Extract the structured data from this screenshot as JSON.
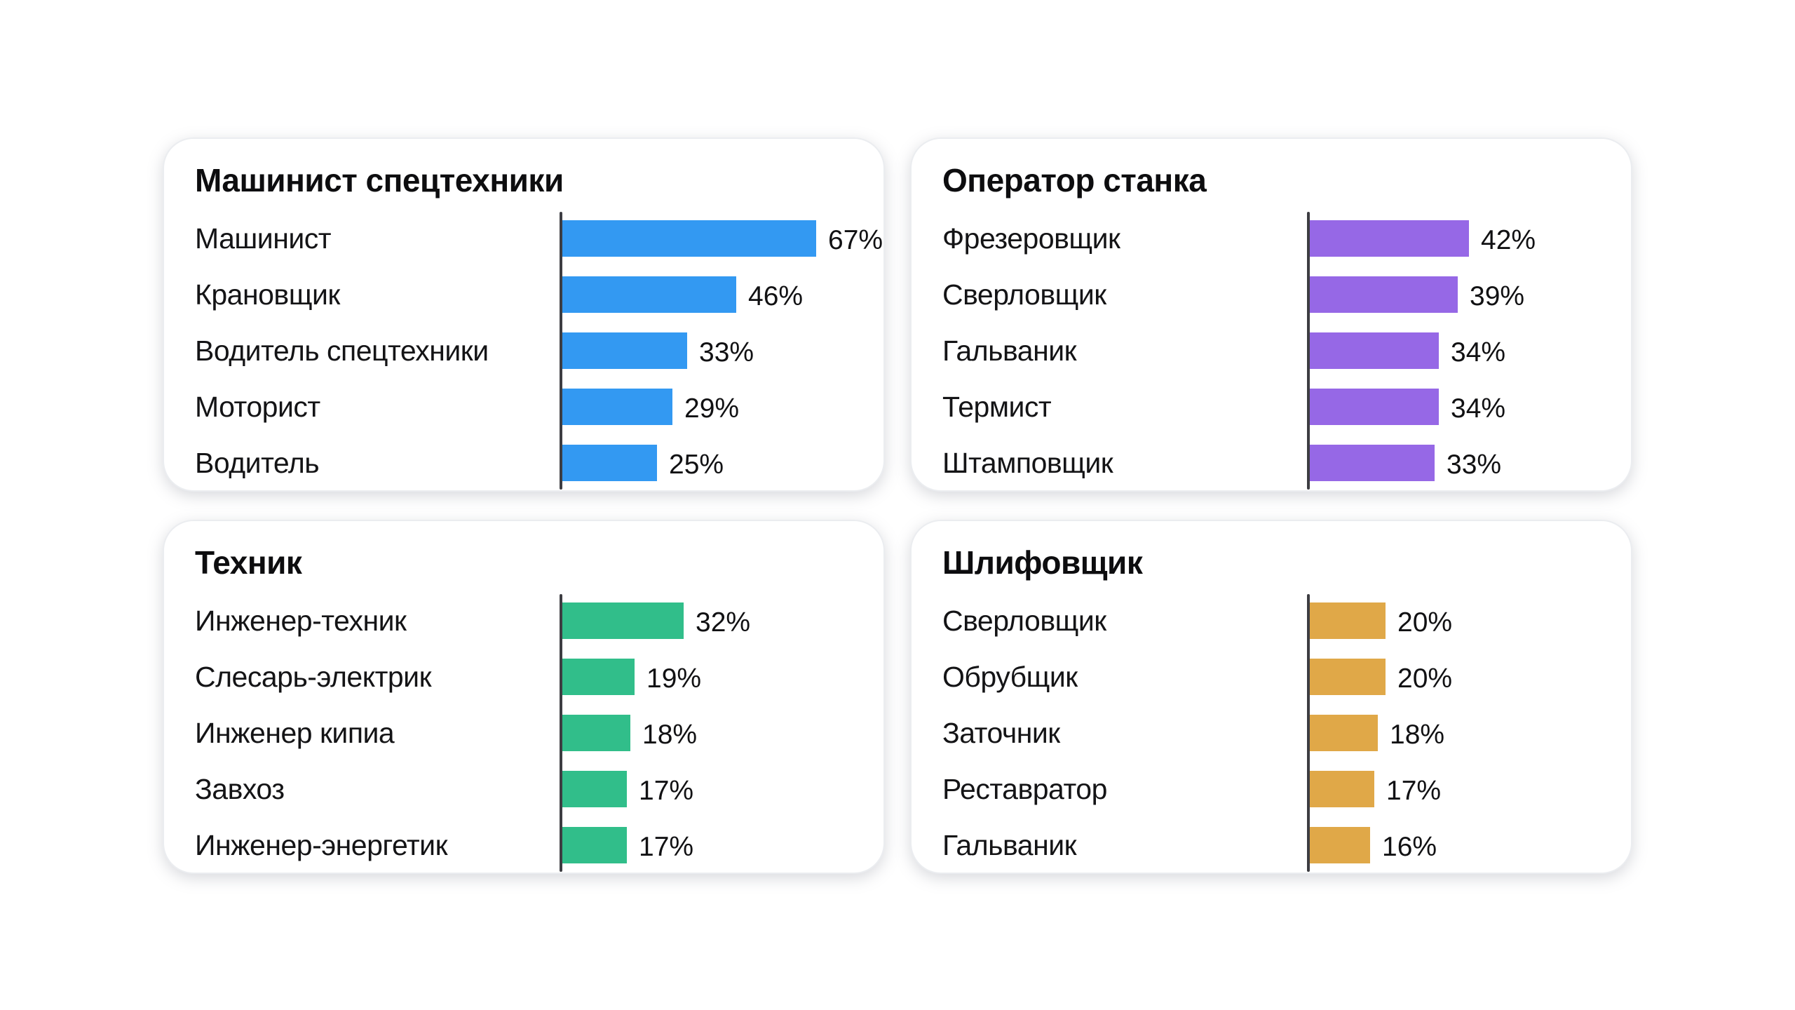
{
  "page": {
    "background_color": "#ffffff",
    "card_background": "#ffffff",
    "axis_color": "#3d3d42",
    "text_color": "#141416"
  },
  "chart_data": [
    {
      "type": "bar",
      "orientation": "horizontal",
      "title": "Машинист спецтехники",
      "color": "#3399f2",
      "categories": [
        "Машинист",
        "Крановщик",
        "Водитель спецтехники",
        "Моторист",
        "Водитель"
      ],
      "values": [
        67,
        46,
        33,
        29,
        25
      ],
      "value_suffix": "%",
      "xlim": [
        0,
        100
      ],
      "grid": false,
      "legend": false,
      "value_labels": "outside-end"
    },
    {
      "type": "bar",
      "orientation": "horizontal",
      "title": "Оператор станка",
      "color": "#9668e6",
      "categories": [
        "Фрезеровщик",
        "Сверловщик",
        "Гальваник",
        "Термист",
        "Штамповщик"
      ],
      "values": [
        42,
        39,
        34,
        34,
        33
      ],
      "value_suffix": "%",
      "xlim": [
        0,
        100
      ],
      "grid": false,
      "legend": false,
      "value_labels": "outside-end"
    },
    {
      "type": "bar",
      "orientation": "horizontal",
      "title": "Техник",
      "color": "#31be8a",
      "categories": [
        "Инженер-техник",
        "Слесарь-электрик",
        "Инженер кипиа",
        "Завхоз",
        "Инженер-энергетик"
      ],
      "values": [
        32,
        19,
        18,
        17,
        17
      ],
      "value_suffix": "%",
      "xlim": [
        0,
        100
      ],
      "grid": false,
      "legend": false,
      "value_labels": "outside-end"
    },
    {
      "type": "bar",
      "orientation": "horizontal",
      "title": "Шлифовщик",
      "color": "#e0a848",
      "categories": [
        "Сверловщик",
        "Обрубщик",
        "Заточник",
        "Реставратор",
        "Гальваник"
      ],
      "values": [
        20,
        20,
        18,
        17,
        16
      ],
      "value_suffix": "%",
      "xlim": [
        0,
        100
      ],
      "grid": false,
      "legend": false,
      "value_labels": "outside-end"
    }
  ]
}
